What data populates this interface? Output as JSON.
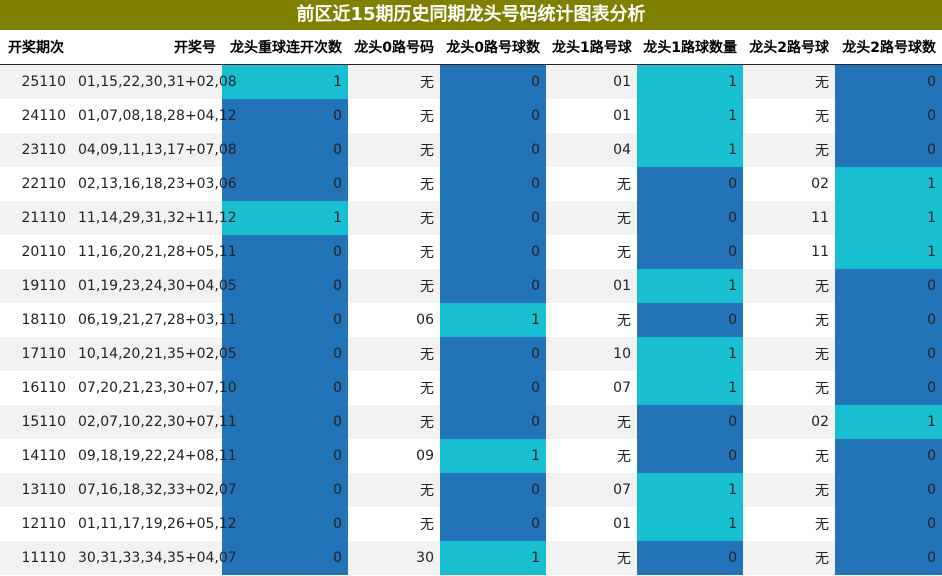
{
  "title": "前区近15期历史同期龙头号码统计图表分析",
  "colors": {
    "header": "#808000",
    "zero": "#2273b7",
    "one": "#17bfd0"
  },
  "columns": [
    "开奖期次",
    "开奖号",
    "龙头重球连开次数",
    "龙头0路号码",
    "龙头0路号球数",
    "龙头1路号球",
    "龙头1路球数量",
    "龙头2路号球",
    "龙头2路号球数"
  ],
  "chart_data": {
    "type": "table",
    "title": "前区近15期历史同期龙头号码统计图表分析",
    "columns": [
      "开奖期次",
      "开奖号",
      "龙头重球连开次数",
      "龙头0路号码",
      "龙头0路号球数",
      "龙头1路号球",
      "龙头1路球数量",
      "龙头2路号球",
      "龙头2路号球数"
    ],
    "rows": [
      [
        "25110",
        "01,15,22,30,31+02,08",
        1,
        "无",
        0,
        "01",
        1,
        "无",
        0
      ],
      [
        "24110",
        "01,07,08,18,28+04,12",
        0,
        "无",
        0,
        "01",
        1,
        "无",
        0
      ],
      [
        "23110",
        "04,09,11,13,17+07,08",
        0,
        "无",
        0,
        "04",
        1,
        "无",
        0
      ],
      [
        "22110",
        "02,13,16,18,23+03,06",
        0,
        "无",
        0,
        "无",
        0,
        "02",
        1
      ],
      [
        "21110",
        "11,14,29,31,32+11,12",
        1,
        "无",
        0,
        "无",
        0,
        "11",
        1
      ],
      [
        "20110",
        "11,16,20,21,28+05,11",
        0,
        "无",
        0,
        "无",
        0,
        "11",
        1
      ],
      [
        "19110",
        "01,19,23,24,30+04,05",
        0,
        "无",
        0,
        "01",
        1,
        "无",
        0
      ],
      [
        "18110",
        "06,19,21,27,28+03,11",
        0,
        "06",
        1,
        "无",
        0,
        "无",
        0
      ],
      [
        "17110",
        "10,14,20,21,35+02,05",
        0,
        "无",
        0,
        "10",
        1,
        "无",
        0
      ],
      [
        "16110",
        "07,20,21,23,30+07,10",
        0,
        "无",
        0,
        "07",
        1,
        "无",
        0
      ],
      [
        "15110",
        "02,07,10,22,30+07,11",
        0,
        "无",
        0,
        "无",
        0,
        "02",
        1
      ],
      [
        "14110",
        "09,18,19,22,24+08,11",
        0,
        "09",
        1,
        "无",
        0,
        "无",
        0
      ],
      [
        "13110",
        "07,16,18,32,33+02,07",
        0,
        "无",
        0,
        "07",
        1,
        "无",
        0
      ],
      [
        "12110",
        "01,11,17,19,26+05,12",
        0,
        "无",
        0,
        "01",
        1,
        "无",
        0
      ],
      [
        "11110",
        "30,31,33,34,35+04,07",
        0,
        "30",
        1,
        "无",
        0,
        "无",
        0
      ]
    ]
  }
}
